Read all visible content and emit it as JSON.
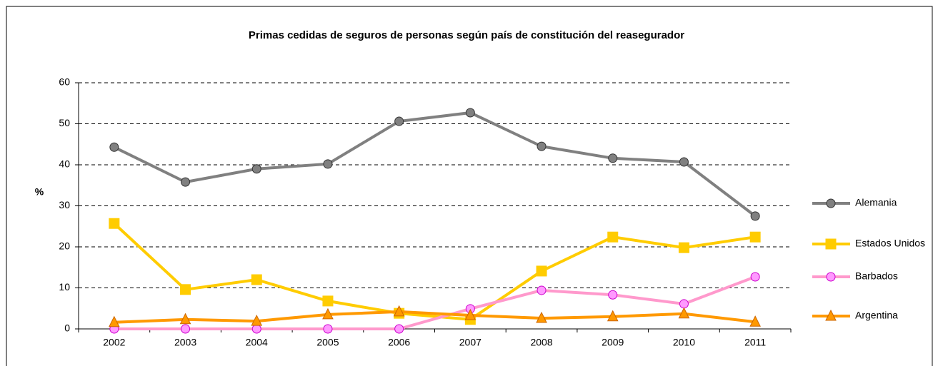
{
  "chart_data": {
    "type": "line",
    "title": "Primas cedidas de seguros de personas según país de constitución del reasegurador",
    "y_label": "%",
    "categories": [
      "2002",
      "2003",
      "2004",
      "2005",
      "2006",
      "2007",
      "2008",
      "2009",
      "2010",
      "2011"
    ],
    "series": [
      {
        "name": "Alemania",
        "color": "#808080",
        "marker": "circle",
        "marker_fill": "#808080",
        "marker_stroke": "#333333",
        "values": [
          44.3,
          35.8,
          39.0,
          40.2,
          50.6,
          52.7,
          44.5,
          41.6,
          40.7,
          27.5
        ]
      },
      {
        "name": "Estados Unidos",
        "color": "#ffcc00",
        "marker": "square",
        "marker_fill": "#ffcc00",
        "marker_stroke": "#ffcc00",
        "values": [
          25.7,
          9.6,
          12.0,
          6.8,
          3.8,
          2.3,
          14.1,
          22.4,
          19.8,
          22.4
        ]
      },
      {
        "name": "Barbados",
        "color": "#ff99cc",
        "marker": "circle",
        "marker_fill": "#ff99ff",
        "marker_stroke": "#cc00cc",
        "values": [
          0,
          0,
          0,
          0,
          0,
          4.9,
          9.4,
          8.3,
          6.1,
          12.7
        ]
      },
      {
        "name": "Argentina",
        "color": "#ff9900",
        "marker": "triangle",
        "marker_fill": "#ff9900",
        "marker_stroke": "#cc6600",
        "values": [
          1.6,
          2.3,
          1.9,
          3.5,
          4.2,
          3.3,
          2.6,
          3.0,
          3.7,
          1.7
        ]
      }
    ],
    "ylim": [
      0,
      60
    ],
    "yticks": [
      0,
      10,
      20,
      30,
      40,
      50,
      60
    ],
    "grid": true,
    "legend": "right"
  }
}
